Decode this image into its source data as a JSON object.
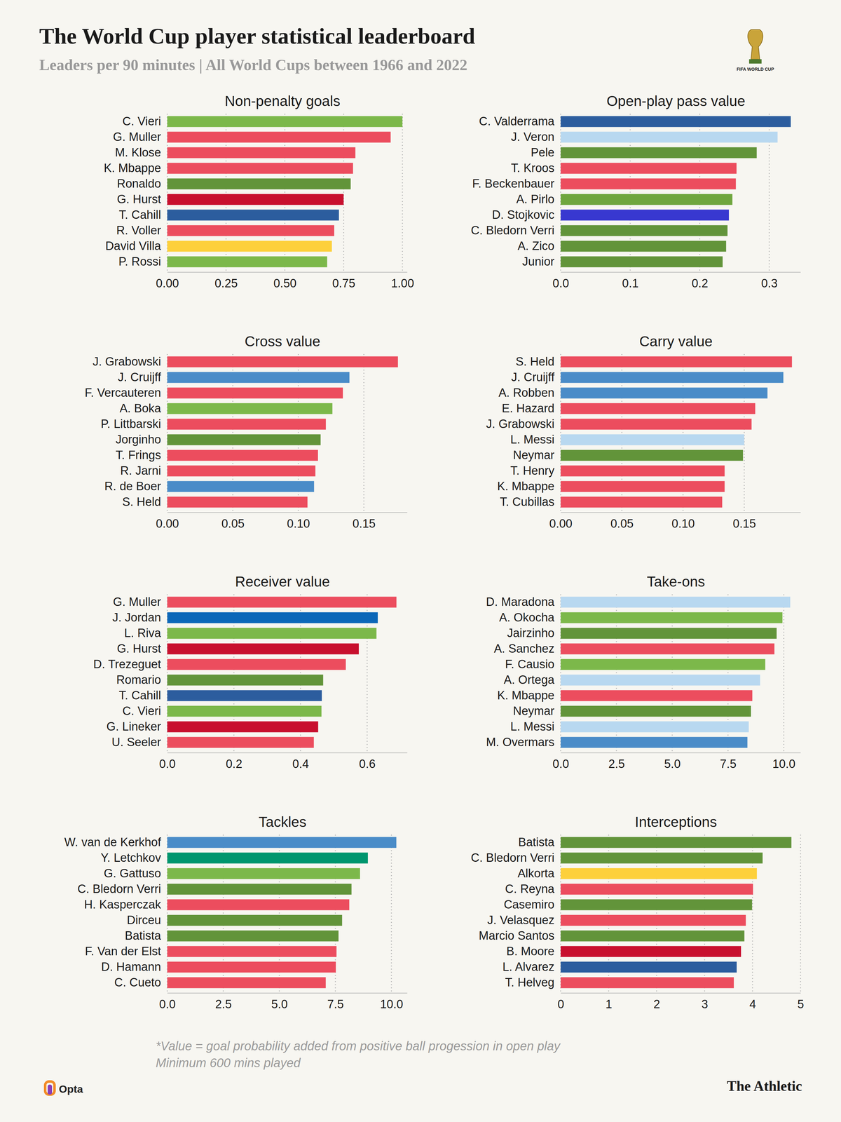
{
  "title": "The World Cup player statistical leaderboard",
  "subtitle": "Leaders per 90 minutes | All World Cups between 1966 and 2022",
  "logo_text": "FIFA WORLD CUP",
  "footnotes": [
    "*Value = goal probability added from positive ball progession in open play",
    "Minimum 600 mins played"
  ],
  "source": "Opta",
  "publisher": "The Athletic",
  "chart_data": [
    {
      "type": "bar",
      "orientation": "horizontal",
      "grid": true,
      "title": "Non-penalty goals",
      "categories": [
        "C. Vieri",
        "G. Muller",
        "M. Klose",
        "K. Mbappe",
        "Ronaldo",
        "G. Hurst",
        "T. Cahill",
        "R. Voller",
        "David Villa",
        "P. Rossi"
      ],
      "values": [
        1.0,
        0.95,
        0.8,
        0.79,
        0.78,
        0.75,
        0.73,
        0.71,
        0.7,
        0.68
      ],
      "colors": [
        "#7cb84a",
        "#ec4d5e",
        "#ec4d5e",
        "#ec4d5e",
        "#62943a",
        "#c8102e",
        "#2c5d9e",
        "#ec4d5e",
        "#fdd03b",
        "#7cb84a"
      ],
      "xlim": [
        0,
        1.02
      ],
      "xticks": [
        {
          "value": 0,
          "label": "0.00"
        },
        {
          "value": 0.25,
          "label": "0.25"
        },
        {
          "value": 0.5,
          "label": "0.50"
        },
        {
          "value": 0.75,
          "label": "0.75"
        },
        {
          "value": 1,
          "label": "1.00"
        }
      ]
    },
    {
      "type": "bar",
      "orientation": "horizontal",
      "grid": true,
      "title": "Open-play pass value",
      "categories": [
        "C. Valderrama",
        "J. Veron",
        "Pele",
        "T. Kroos",
        "F. Beckenbauer",
        "A. Pirlo",
        "D. Stojkovic",
        "C. Bledorn Verri",
        "A. Zico",
        "Junior"
      ],
      "values": [
        0.331,
        0.312,
        0.282,
        0.253,
        0.252,
        0.247,
        0.242,
        0.24,
        0.238,
        0.233
      ],
      "colors": [
        "#2c5d9e",
        "#b8d8f0",
        "#62943a",
        "#ec4d5e",
        "#ec4d5e",
        "#6fa63e",
        "#3838d0",
        "#62943a",
        "#62943a",
        "#62943a"
      ],
      "xlim": [
        0,
        0.345
      ],
      "xticks": [
        {
          "value": 0,
          "label": "0.0"
        },
        0.1,
        0.2,
        0.3
      ]
    },
    {
      "type": "bar",
      "orientation": "horizontal",
      "grid": true,
      "title": "Cross value",
      "categories": [
        "J. Grabowski",
        "J. Cruijff",
        "F. Vercauteren",
        "A. Boka",
        "P. Littbarski",
        "Jorginho",
        "T. Frings",
        "R. Jarni",
        "R. de Boer",
        "S. Held"
      ],
      "values": [
        0.176,
        0.139,
        0.134,
        0.126,
        0.121,
        0.117,
        0.115,
        0.113,
        0.112,
        0.107
      ],
      "colors": [
        "#ec4d5e",
        "#4a8cc8",
        "#ec4d5e",
        "#7cb84a",
        "#ec4d5e",
        "#62943a",
        "#ec4d5e",
        "#ec4d5e",
        "#4a8cc8",
        "#ec4d5e"
      ],
      "xlim": [
        0,
        0.183
      ],
      "xticks": [
        {
          "value": 0,
          "label": "0.00"
        },
        0.05,
        {
          "value": 0.1,
          "label": "0.10"
        },
        0.15
      ]
    },
    {
      "type": "bar",
      "orientation": "horizontal",
      "grid": true,
      "title": "Carry value",
      "categories": [
        "S. Held",
        "J. Cruijff",
        "A. Robben",
        "E. Hazard",
        "J. Grabowski",
        "L. Messi",
        "Neymar",
        "T. Henry",
        "K. Mbappe",
        "T. Cubillas"
      ],
      "values": [
        0.189,
        0.182,
        0.169,
        0.159,
        0.156,
        0.15,
        0.149,
        0.134,
        0.134,
        0.132
      ],
      "colors": [
        "#ec4d5e",
        "#4a8cc8",
        "#4a8cc8",
        "#ec4d5e",
        "#ec4d5e",
        "#b8d8f0",
        "#62943a",
        "#ec4d5e",
        "#ec4d5e",
        "#ec4d5e"
      ],
      "xlim": [
        0,
        0.196
      ],
      "xticks": [
        {
          "value": 0,
          "label": "0.00"
        },
        0.05,
        {
          "value": 0.1,
          "label": "0.10"
        },
        0.15
      ]
    },
    {
      "type": "bar",
      "orientation": "horizontal",
      "grid": true,
      "title": "Receiver value",
      "categories": [
        "G. Muller",
        "J. Jordan",
        "L. Riva",
        "G. Hurst",
        "D. Trezeguet",
        "Romario",
        "T. Cahill",
        "C. Vieri",
        "G. Lineker",
        "U. Seeler"
      ],
      "values": [
        0.688,
        0.632,
        0.628,
        0.575,
        0.536,
        0.468,
        0.464,
        0.463,
        0.453,
        0.44
      ],
      "colors": [
        "#ec4d5e",
        "#0b67b8",
        "#7cb84a",
        "#c8102e",
        "#ec4d5e",
        "#62943a",
        "#2c5d9e",
        "#7cb84a",
        "#c8102e",
        "#ec4d5e"
      ],
      "xlim": [
        0,
        0.72
      ],
      "xticks": [
        {
          "value": 0,
          "label": "0.0"
        },
        0.2,
        0.4,
        0.6
      ]
    },
    {
      "type": "bar",
      "orientation": "horizontal",
      "grid": true,
      "title": "Take-ons",
      "categories": [
        "D. Maradona",
        "A. Okocha",
        "Jairzinho",
        "A. Sanchez",
        "F. Causio",
        "A. Ortega",
        "K. Mbappe",
        "Neymar",
        "L. Messi",
        "M. Overmars"
      ],
      "values": [
        10.29,
        9.94,
        9.68,
        9.58,
        9.17,
        8.94,
        8.59,
        8.53,
        8.43,
        8.37
      ],
      "colors": [
        "#b8d8f0",
        "#7cb84a",
        "#62943a",
        "#ec4d5e",
        "#7cb84a",
        "#b8d8f0",
        "#ec4d5e",
        "#62943a",
        "#b8d8f0",
        "#4a8cc8"
      ],
      "xlim": [
        0,
        10.75
      ],
      "xticks": [
        {
          "value": 0,
          "label": "0.0"
        },
        2.5,
        {
          "value": 5,
          "label": "5.0"
        },
        7.5,
        {
          "value": 10,
          "label": "10.0"
        }
      ]
    },
    {
      "type": "bar",
      "orientation": "horizontal",
      "grid": true,
      "title": "Tackles",
      "categories": [
        "W. van de Kerkhof",
        "Y. Letchkov",
        "G. Gattuso",
        "C. Bledorn Verri",
        "H. Kasperczak",
        "Dirceu",
        "Batista",
        "F. Van der Elst",
        "D. Hamann",
        "C. Cueto"
      ],
      "values": [
        10.22,
        8.95,
        8.6,
        8.22,
        8.12,
        7.8,
        7.64,
        7.55,
        7.52,
        7.07
      ],
      "colors": [
        "#4a8cc8",
        "#00966e",
        "#7cb84a",
        "#62943a",
        "#ec4d5e",
        "#62943a",
        "#62943a",
        "#ec4d5e",
        "#ec4d5e",
        "#ec4d5e"
      ],
      "xlim": [
        0,
        10.7
      ],
      "xticks": [
        {
          "value": 0,
          "label": "0.0"
        },
        2.5,
        {
          "value": 5,
          "label": "5.0"
        },
        7.5,
        {
          "value": 10,
          "label": "10.0"
        }
      ]
    },
    {
      "type": "bar",
      "orientation": "horizontal",
      "grid": true,
      "title": "Interceptions",
      "categories": [
        "Batista",
        "C. Bledorn Verri",
        "Alkorta",
        "C. Reyna",
        "Casemiro",
        "J. Velasquez",
        "Marcio Santos",
        "B. Moore",
        "L. Alvarez",
        "T. Helveg"
      ],
      "values": [
        4.81,
        4.21,
        4.09,
        4.01,
        3.99,
        3.86,
        3.83,
        3.76,
        3.67,
        3.61
      ],
      "colors": [
        "#62943a",
        "#62943a",
        "#fdd03b",
        "#ec4d5e",
        "#62943a",
        "#ec4d5e",
        "#62943a",
        "#c8102e",
        "#2c5d9e",
        "#ec4d5e"
      ],
      "xlim": [
        0,
        5
      ],
      "xticks": [
        0,
        1,
        2,
        3,
        4,
        5
      ]
    }
  ]
}
